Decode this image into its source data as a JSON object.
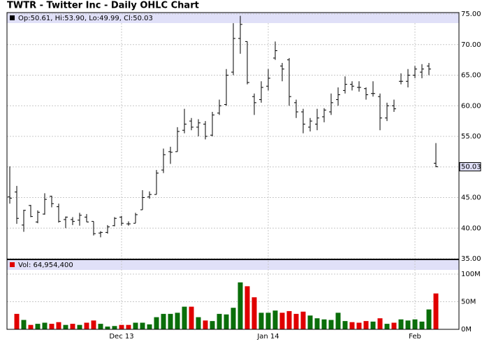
{
  "chart_data": [
    {
      "type": "ohlc",
      "title": "TWTR - Twitter Inc - Daily OHLC Chart",
      "legend": "Op:50.61, Hi:53.90, Lo:49.99, Cl:50.03",
      "categories": [
        null,
        null,
        null,
        null,
        null,
        null,
        null,
        null,
        null,
        null,
        null,
        null,
        null,
        null,
        null,
        null,
        "Dec 13",
        null,
        null,
        null,
        null,
        null,
        null,
        null,
        null,
        null,
        null,
        null,
        null,
        null,
        null,
        null,
        null,
        null,
        null,
        null,
        null,
        "Jan 14",
        null,
        null,
        null,
        null,
        null,
        null,
        null,
        null,
        null,
        null,
        null,
        null,
        null,
        null,
        null,
        null,
        null,
        null,
        null,
        null,
        "Feb",
        null,
        null,
        null
      ],
      "open": [
        45.1,
        45.9,
        40.5,
        43.7,
        41,
        42.3,
        45.2,
        43.5,
        41.4,
        41.4,
        41.3,
        41.8,
        41.1,
        39.2,
        39.3,
        40.4,
        41.8,
        40.7,
        40.8,
        43,
        45.1,
        45.5,
        49.5,
        52.5,
        52.5,
        56,
        57.5,
        56.5,
        57,
        55.2,
        58.8,
        60.2,
        65.5,
        71,
        70.5,
        61.5,
        61,
        63.2,
        67.8,
        66.5,
        67.5,
        60.5,
        59,
        56.5,
        57,
        58.2,
        59,
        61,
        62.5,
        63.5,
        63,
        62.8,
        62,
        61.5,
        58,
        60,
        64,
        64,
        65,
        65.5,
        66.5,
        50.61
      ],
      "high": [
        50.1,
        46.9,
        43,
        43.8,
        42.9,
        45.7,
        45.3,
        44,
        41.9,
        41.8,
        42.5,
        42.3,
        41.1,
        39.5,
        40.5,
        41.8,
        42,
        41.1,
        42.5,
        46.2,
        46,
        49.5,
        53,
        53.3,
        56.5,
        59.5,
        58,
        57.8,
        57.5,
        59,
        61,
        66,
        73.5,
        74.7,
        70.5,
        62,
        64,
        66,
        70.5,
        67,
        67.8,
        61,
        59.5,
        58,
        59.5,
        59.6,
        62,
        63,
        64.8,
        64,
        64,
        63,
        64,
        62,
        60.5,
        61,
        65.3,
        66,
        66.5,
        66.8,
        67,
        53.9
      ],
      "low": [
        44,
        40.7,
        39.4,
        41.8,
        40.8,
        42.2,
        43.4,
        40.9,
        40,
        40.5,
        40.4,
        41,
        38.8,
        38.5,
        39.1,
        40.3,
        40.4,
        40.4,
        40.8,
        43,
        44.8,
        45.5,
        49,
        50.5,
        52.5,
        55.5,
        56,
        55,
        54.5,
        55,
        58.5,
        60,
        65,
        68.5,
        63.5,
        58.5,
        60.5,
        62.5,
        67.5,
        64,
        60,
        58,
        55.5,
        55.8,
        56,
        57.3,
        58.5,
        60,
        62,
        62.5,
        62.3,
        61,
        61.5,
        56,
        57.5,
        59,
        63.5,
        63,
        64.5,
        64.5,
        65,
        49.99
      ],
      "close": [
        44.9,
        41.6,
        42.9,
        41.9,
        42.6,
        44.7,
        44,
        41.1,
        41.8,
        41.1,
        42.1,
        41,
        39.1,
        39.3,
        40.2,
        41.6,
        40.8,
        40.7,
        42.2,
        45,
        45.5,
        49,
        52,
        52.4,
        55.8,
        57,
        56.5,
        57.2,
        55,
        58.5,
        60,
        65,
        71,
        73.3,
        63.8,
        60.5,
        63,
        64.5,
        69,
        66,
        61.5,
        59,
        57,
        57.5,
        58,
        59.3,
        60.5,
        61.8,
        63.5,
        63.2,
        63,
        61.8,
        62,
        58,
        60,
        59.5,
        64,
        65,
        66,
        66,
        66,
        50.03
      ],
      "ylim": [
        35,
        75
      ],
      "yticks": [
        {
          "value": 35,
          "label": "35.00"
        },
        {
          "value": 40,
          "label": "40.00"
        },
        {
          "value": 45,
          "label": "45.00"
        },
        {
          "value": 50,
          "label": "50.00"
        },
        {
          "value": 55,
          "label": "55.00"
        },
        {
          "value": 60,
          "label": "60.00"
        },
        {
          "value": 65,
          "label": "65.00"
        },
        {
          "value": 70,
          "label": "70.00"
        },
        {
          "value": 75,
          "label": "75.00"
        }
      ],
      "color": "#000000",
      "grid": true
    },
    {
      "type": "bar",
      "legend": "Vol: 64,954,400",
      "values": [
        null,
        28,
        17,
        8,
        10,
        12,
        10,
        13,
        8,
        10,
        8,
        12,
        16,
        10,
        5,
        6,
        8,
        8,
        12,
        12,
        9,
        22,
        28,
        28,
        30,
        41,
        41,
        22,
        16,
        15,
        28,
        27,
        39,
        85,
        78,
        58,
        30,
        30,
        34,
        30,
        33,
        28,
        32,
        25,
        20,
        18,
        17,
        30,
        15,
        13,
        12,
        15,
        14,
        20,
        10,
        12,
        18,
        16,
        18,
        14,
        36,
        64.9544
      ],
      "ylim": [
        0,
        100
      ],
      "yticks": [
        {
          "value": 0,
          "label": "0M"
        },
        {
          "value": 50,
          "label": "50M"
        },
        {
          "value": 100,
          "label": "100M"
        }
      ],
      "up_color": "#0a6e0a",
      "down_color": "#e00000",
      "grid": true
    }
  ]
}
